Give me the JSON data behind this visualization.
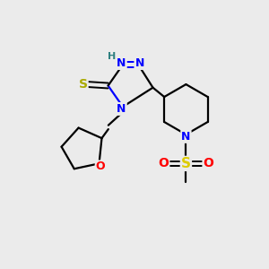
{
  "background_color": "#ebebeb",
  "bond_color": "#000000",
  "N_color": "#0000ff",
  "O_color": "#ff0000",
  "S_thiol_color": "#aaaa00",
  "S_sulfonyl_color": "#ddcc00",
  "H_color": "#2f8080",
  "figsize": [
    3.0,
    3.0
  ],
  "dpi": 100,
  "xlim": [
    0,
    10
  ],
  "ylim": [
    0,
    10
  ]
}
